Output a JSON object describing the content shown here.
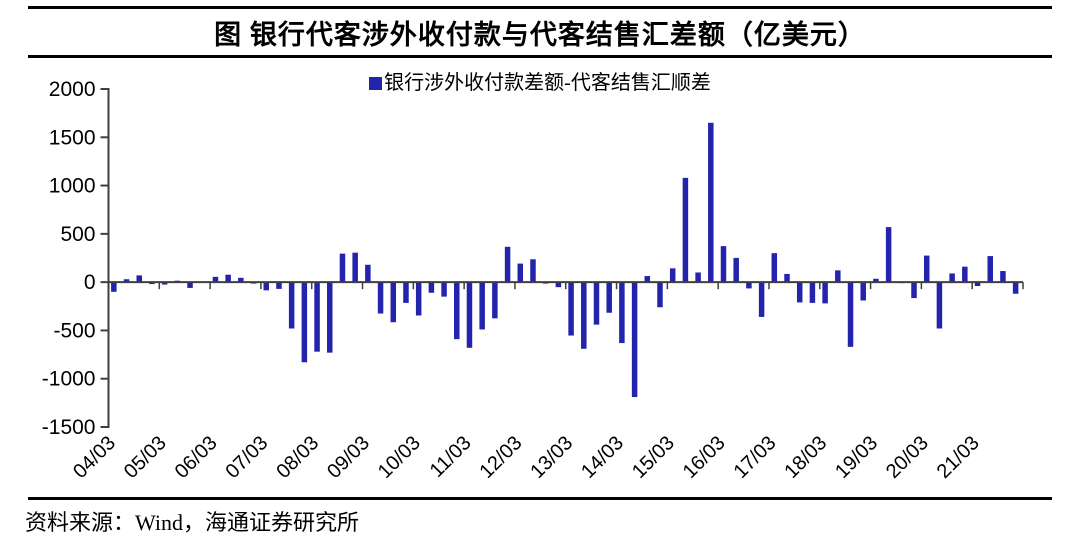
{
  "title": "图 银行代客涉外收付款与代客结售汇差额（亿美元）",
  "legend": {
    "label": "银行涉外收付款差额-代客结售汇顺差",
    "swatch_color": "#2323AC"
  },
  "source_note": "资料来源：Wind，海通证券研究所",
  "colors": {
    "bar": "#2323AC",
    "axis": "#3f3f3f",
    "text": "#000000"
  },
  "chart_data": {
    "type": "bar",
    "title": "图 银行代客涉外收付款与代客结售汇差额（亿美元）",
    "series_name": "银行涉外收付款差额-代客结售汇顺差",
    "unit": "亿美元",
    "ylim": [
      -1500,
      2000
    ],
    "y_ticks": [
      2000,
      1500,
      1000,
      500,
      0,
      -500,
      -1000,
      -1500
    ],
    "grid": false,
    "legend_position": "top-center",
    "x_tick_labels": [
      "04/03",
      "05/03",
      "06/03",
      "07/03",
      "08/03",
      "09/03",
      "10/03",
      "11/03",
      "12/03",
      "13/03",
      "14/03",
      "15/03",
      "16/03",
      "17/03",
      "18/03",
      "19/03",
      "20/03",
      "21/03"
    ],
    "categories": [
      "04/03",
      "04/06",
      "04/09",
      "04/12",
      "05/03",
      "05/06",
      "05/09",
      "05/12",
      "06/03",
      "06/06",
      "06/09",
      "06/12",
      "07/03",
      "07/06",
      "07/09",
      "07/12",
      "08/03",
      "08/06",
      "08/09",
      "08/12",
      "09/03",
      "09/06",
      "09/09",
      "09/12",
      "10/03",
      "10/06",
      "10/09",
      "10/12",
      "11/03",
      "11/06",
      "11/09",
      "11/12",
      "12/03",
      "12/06",
      "12/09",
      "12/12",
      "13/03",
      "13/06",
      "13/09",
      "13/12",
      "14/03",
      "14/06",
      "14/09",
      "14/12",
      "15/03",
      "15/06",
      "15/09",
      "15/12",
      "16/03",
      "16/06",
      "16/09",
      "16/12",
      "17/03",
      "17/06",
      "17/09",
      "17/12",
      "18/03",
      "18/06",
      "18/09",
      "18/12",
      "19/03",
      "19/06",
      "19/09",
      "19/12",
      "20/03",
      "20/06",
      "20/09",
      "20/12",
      "21/03",
      "21/06",
      "21/09",
      "21/12"
    ],
    "values": [
      -100,
      30,
      70,
      -20,
      -25,
      15,
      -60,
      -5,
      55,
      77,
      45,
      -15,
      -85,
      -70,
      -480,
      -830,
      -720,
      -730,
      295,
      305,
      180,
      -325,
      -415,
      -215,
      -345,
      -110,
      -150,
      -590,
      -680,
      -490,
      -375,
      366,
      192,
      237,
      -15,
      -52,
      -553,
      -690,
      -440,
      -317,
      -631,
      -1190,
      63,
      -260,
      143,
      1080,
      100,
      1650,
      373,
      251,
      -65,
      -360,
      300,
      85,
      -210,
      -215,
      -220,
      122,
      -670,
      -190,
      35,
      570,
      -10,
      -165,
      275,
      -480,
      90,
      160,
      -40,
      270,
      115,
      -120
    ]
  }
}
